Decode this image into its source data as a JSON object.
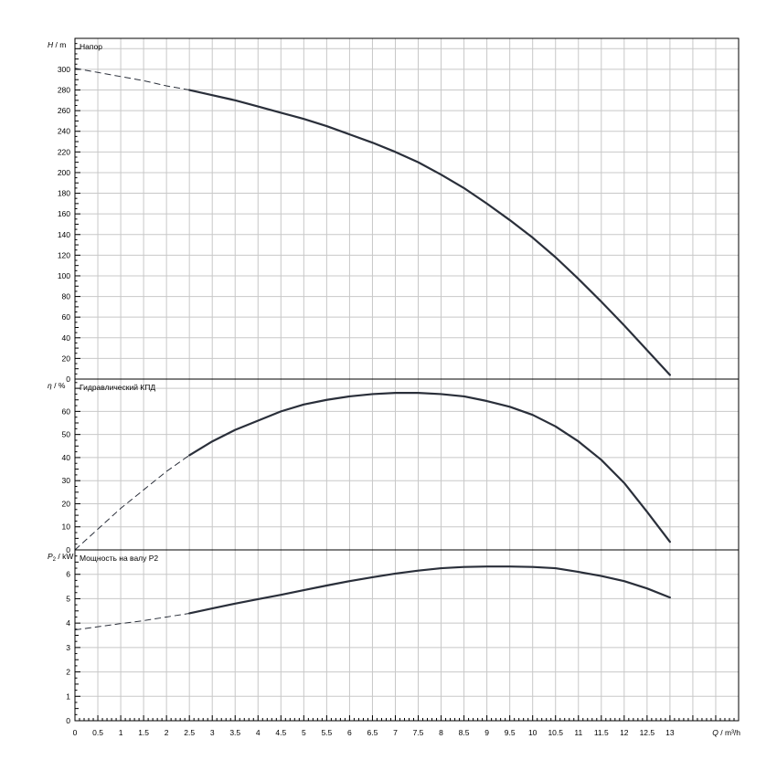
{
  "chart_data": {
    "type": "line",
    "x_axis": {
      "label_var": "Q",
      "label_unit": " / m³/h",
      "range": [
        0,
        14.5
      ],
      "tick_step": 0.5,
      "ticks": [
        "0",
        "0.5",
        "1",
        "1.5",
        "2",
        "2.5",
        "3",
        "3.5",
        "4",
        "4.5",
        "5",
        "5.5",
        "6",
        "6.5",
        "7",
        "7.5",
        "8",
        "8.5",
        "9",
        "9.5",
        "10",
        "10.5",
        "11",
        "11.5",
        "12",
        "12.5",
        "13"
      ]
    },
    "grid": true,
    "panels": [
      {
        "id": "head",
        "title": "Напор",
        "y_var": "H",
        "y_sub": "",
        "y_unit": " / m",
        "ylim": [
          0,
          330
        ],
        "ytick_step": 20,
        "yticks": [
          "0",
          "20",
          "40",
          "60",
          "80",
          "100",
          "120",
          "140",
          "160",
          "180",
          "200",
          "220",
          "240",
          "260",
          "280",
          "300"
        ],
        "series": [
          {
            "style": "dashed",
            "x": [
              0,
              0.5,
              1,
              1.5,
              2,
              2.5
            ],
            "y": [
              301,
              297,
              293,
              289,
              284,
              280
            ]
          },
          {
            "style": "solid",
            "x": [
              2.5,
              3,
              3.5,
              4,
              4.5,
              5,
              5.5,
              6,
              6.5,
              7,
              7.5,
              8,
              8.5,
              9,
              9.5,
              10,
              10.5,
              11,
              11.5,
              12,
              12.5,
              13
            ],
            "y": [
              280,
              275,
              270,
              264,
              258,
              252,
              245,
              237,
              229,
              220,
              210,
              198,
              185,
              170,
              154,
              137,
              118,
              97,
              75,
              52,
              28,
              4
            ]
          }
        ]
      },
      {
        "id": "efficiency",
        "title": "Гидравлический КПД",
        "y_var": "η",
        "y_sub": "",
        "y_unit": " / %",
        "ylim": [
          0,
          74
        ],
        "ytick_step": 10,
        "yticks": [
          "0",
          "10",
          "20",
          "30",
          "40",
          "50",
          "60"
        ],
        "series": [
          {
            "style": "dashed",
            "x": [
              0,
              0.5,
              1,
              1.5,
              2,
              2.5
            ],
            "y": [
              0,
              9,
              18,
              26,
              34,
              41
            ]
          },
          {
            "style": "solid",
            "x": [
              2.5,
              3,
              3.5,
              4,
              4.5,
              5,
              5.5,
              6,
              6.5,
              7,
              7.5,
              8,
              8.5,
              9,
              9.5,
              10,
              10.5,
              11,
              11.5,
              12,
              12.5,
              13
            ],
            "y": [
              41,
              47,
              52,
              56,
              60,
              63,
              65,
              66.5,
              67.5,
              68,
              68,
              67.5,
              66.5,
              64.5,
              62,
              58.5,
              53.5,
              47,
              39,
              29,
              16.5,
              3.5
            ]
          }
        ]
      },
      {
        "id": "power",
        "title": "Мощность на валу P2",
        "y_var": "P",
        "y_sub": "2",
        "y_unit": " / kW",
        "ylim": [
          0,
          7
        ],
        "ytick_step": 1,
        "yticks": [
          "0",
          "1",
          "2",
          "3",
          "4",
          "5",
          "6"
        ],
        "series": [
          {
            "style": "dashed",
            "x": [
              0,
              0.5,
              1,
              1.5,
              2,
              2.5
            ],
            "y": [
              3.72,
              3.85,
              3.98,
              4.1,
              4.25,
              4.4
            ]
          },
          {
            "style": "solid",
            "x": [
              2.5,
              3,
              3.5,
              4,
              4.5,
              5,
              5.5,
              6,
              6.5,
              7,
              7.5,
              8,
              8.5,
              9,
              9.5,
              10,
              10.5,
              11,
              11.5,
              12,
              12.5,
              13
            ],
            "y": [
              4.4,
              4.6,
              4.8,
              4.98,
              5.16,
              5.35,
              5.54,
              5.72,
              5.88,
              6.03,
              6.15,
              6.25,
              6.3,
              6.32,
              6.32,
              6.3,
              6.25,
              6.1,
              5.93,
              5.72,
              5.42,
              5.05
            ]
          }
        ]
      }
    ]
  }
}
